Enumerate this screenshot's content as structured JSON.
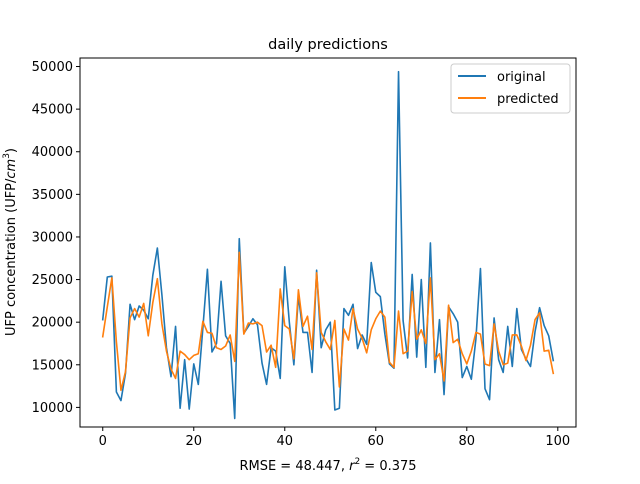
{
  "chart_data": {
    "type": "line",
    "title": "daily predictions",
    "xlabel_text": "RMSE = 48.447, ",
    "xlabel_r": "r",
    "xlabel_sup": "2",
    "xlabel_tail": " = 0.375",
    "ylabel_prefix": "UFP concentration (UFP/",
    "ylabel_cm": "cm",
    "ylabel_sup": "3",
    "ylabel_suffix": ")",
    "xlim": [
      -5,
      104
    ],
    "ylim": [
      7700,
      51000
    ],
    "xticks": [
      0,
      20,
      40,
      60,
      80,
      100
    ],
    "yticks": [
      10000,
      15000,
      20000,
      25000,
      30000,
      35000,
      40000,
      45000,
      50000
    ],
    "legend_position": "top-right",
    "grid": false,
    "series": [
      {
        "name": "original",
        "color": "#1f77b4",
        "values": [
          20300,
          25300,
          25400,
          11800,
          10800,
          14000,
          22100,
          20300,
          21900,
          21400,
          20400,
          25500,
          28700,
          23200,
          17000,
          13600,
          19500,
          9900,
          15600,
          9800,
          15100,
          12700,
          19300,
          26200,
          16500,
          17500,
          24800,
          18400,
          17500,
          8700,
          29800,
          18700,
          19500,
          20400,
          19700,
          15200,
          12700,
          17000,
          16600,
          13400,
          26500,
          20000,
          15000,
          23100,
          18800,
          18800,
          14100,
          26100,
          17000,
          19100,
          20000,
          9700,
          9900,
          21600,
          20800,
          22100,
          16900,
          18500,
          17400,
          27000,
          23500,
          23000,
          18600,
          15100,
          14600,
          49400,
          20200,
          15800,
          25600,
          15900,
          25000,
          14700,
          29300,
          14100,
          20300,
          11500,
          21800,
          21000,
          20000,
          13500,
          14800,
          13300,
          18000,
          26300,
          12200,
          10900,
          20500,
          15600,
          14100,
          19500,
          14800,
          21600,
          16800,
          15700,
          14800,
          18900,
          21700,
          19600,
          18400,
          15500
        ]
      },
      {
        "name": "predicted",
        "color": "#ff7f0e",
        "values": [
          18300,
          21800,
          25200,
          17700,
          12000,
          14200,
          20500,
          21600,
          20600,
          22200,
          18400,
          22300,
          25100,
          19800,
          16600,
          14500,
          13400,
          16600,
          16200,
          15600,
          16100,
          16300,
          20100,
          18800,
          18700,
          17000,
          16800,
          17200,
          18500,
          15400,
          28200,
          18600,
          19900,
          19800,
          20000,
          19600,
          16500,
          17300,
          14700,
          23900,
          19600,
          19200,
          15700,
          23800,
          19500,
          20700,
          16800,
          25800,
          18800,
          17700,
          16800,
          20200,
          12400,
          19200,
          17900,
          21600,
          19200,
          18100,
          16400,
          19100,
          20400,
          21300,
          20600,
          15300,
          14700,
          21300,
          16300,
          16600,
          23600,
          18000,
          19100,
          17500,
          25200,
          15600,
          16300,
          13100,
          22000,
          17600,
          18000,
          16300,
          15100,
          16600,
          18800,
          18600,
          15100,
          14900,
          19800,
          16600,
          15000,
          15200,
          18500,
          18500,
          17200,
          15500,
          17300,
          20300,
          21100,
          16600,
          16700,
          14000
        ]
      }
    ]
  }
}
